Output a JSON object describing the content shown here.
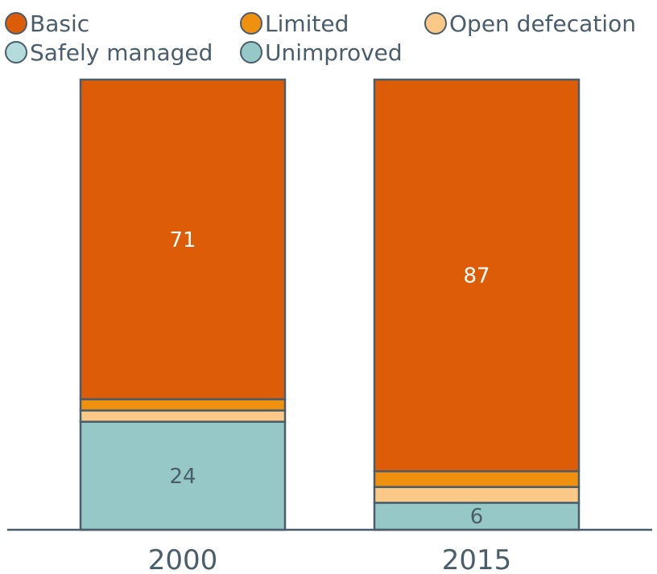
{
  "chart_data": {
    "type": "bar",
    "stacked": true,
    "categories": [
      "2000",
      "2015"
    ],
    "series": [
      {
        "name": "Unimproved",
        "color": "#96c8c8",
        "values": [
          24,
          6
        ],
        "labels": [
          "24",
          "6"
        ],
        "label_color": "#4a5d6b"
      },
      {
        "name": "Open defecation",
        "color": "#fbc987",
        "values": [
          2.5,
          3.5
        ],
        "labels": [
          "",
          ""
        ],
        "label_color": "#4a5d6b"
      },
      {
        "name": "Limited",
        "color": "#f0900f",
        "values": [
          2.5,
          3.5
        ],
        "labels": [
          "",
          ""
        ],
        "label_color": "#ffffff"
      },
      {
        "name": "Basic",
        "color": "#dd5c07",
        "values": [
          71,
          87
        ],
        "labels": [
          "71",
          "87"
        ],
        "label_color": "#ffffff"
      },
      {
        "name": "Safely managed",
        "color": "#b4dcdc",
        "values": [
          0,
          0
        ],
        "labels": [
          "",
          ""
        ],
        "label_color": "#4a5d6b"
      }
    ],
    "ylim": [
      0,
      100
    ],
    "grid": false,
    "legend_position": "top"
  },
  "legend": [
    {
      "name": "Basic",
      "color": "#dd5c07"
    },
    {
      "name": "Limited",
      "color": "#f0900f"
    },
    {
      "name": "Open defecation",
      "color": "#fbc987"
    },
    {
      "name": "Safely managed",
      "color": "#b4dcdc"
    },
    {
      "name": "Unimproved",
      "color": "#96c8c8"
    }
  ]
}
